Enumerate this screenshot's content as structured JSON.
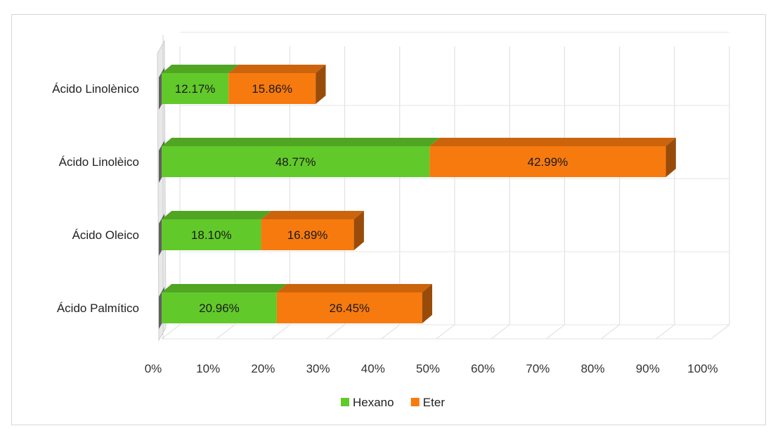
{
  "chart_data": {
    "type": "bar",
    "orientation": "horizontal",
    "stacked": true,
    "style": "3d",
    "categories": [
      "Ácido Linolènico",
      "Ácido Linolèico",
      "Ácido Oleico",
      "Ácido Palmítico"
    ],
    "series": [
      {
        "name": "Hexano",
        "color": "#62c92a",
        "values": [
          12.17,
          48.77,
          18.1,
          20.96
        ],
        "labels": [
          "12.17%",
          "48.77%",
          "18.10%",
          "20.96%"
        ]
      },
      {
        "name": "Eter",
        "color": "#f77a0f",
        "values": [
          15.86,
          42.99,
          16.89,
          26.45
        ],
        "labels": [
          "15.86%",
          "42.99%",
          "16.89%",
          "26.45%"
        ]
      }
    ],
    "xticks": [
      "0%",
      "10%",
      "20%",
      "30%",
      "40%",
      "50%",
      "60%",
      "70%",
      "80%",
      "90%",
      "100%"
    ],
    "xlim": [
      0,
      100
    ],
    "grid": true,
    "legend_position": "bottom",
    "title": "",
    "xlabel": "",
    "ylabel": ""
  }
}
